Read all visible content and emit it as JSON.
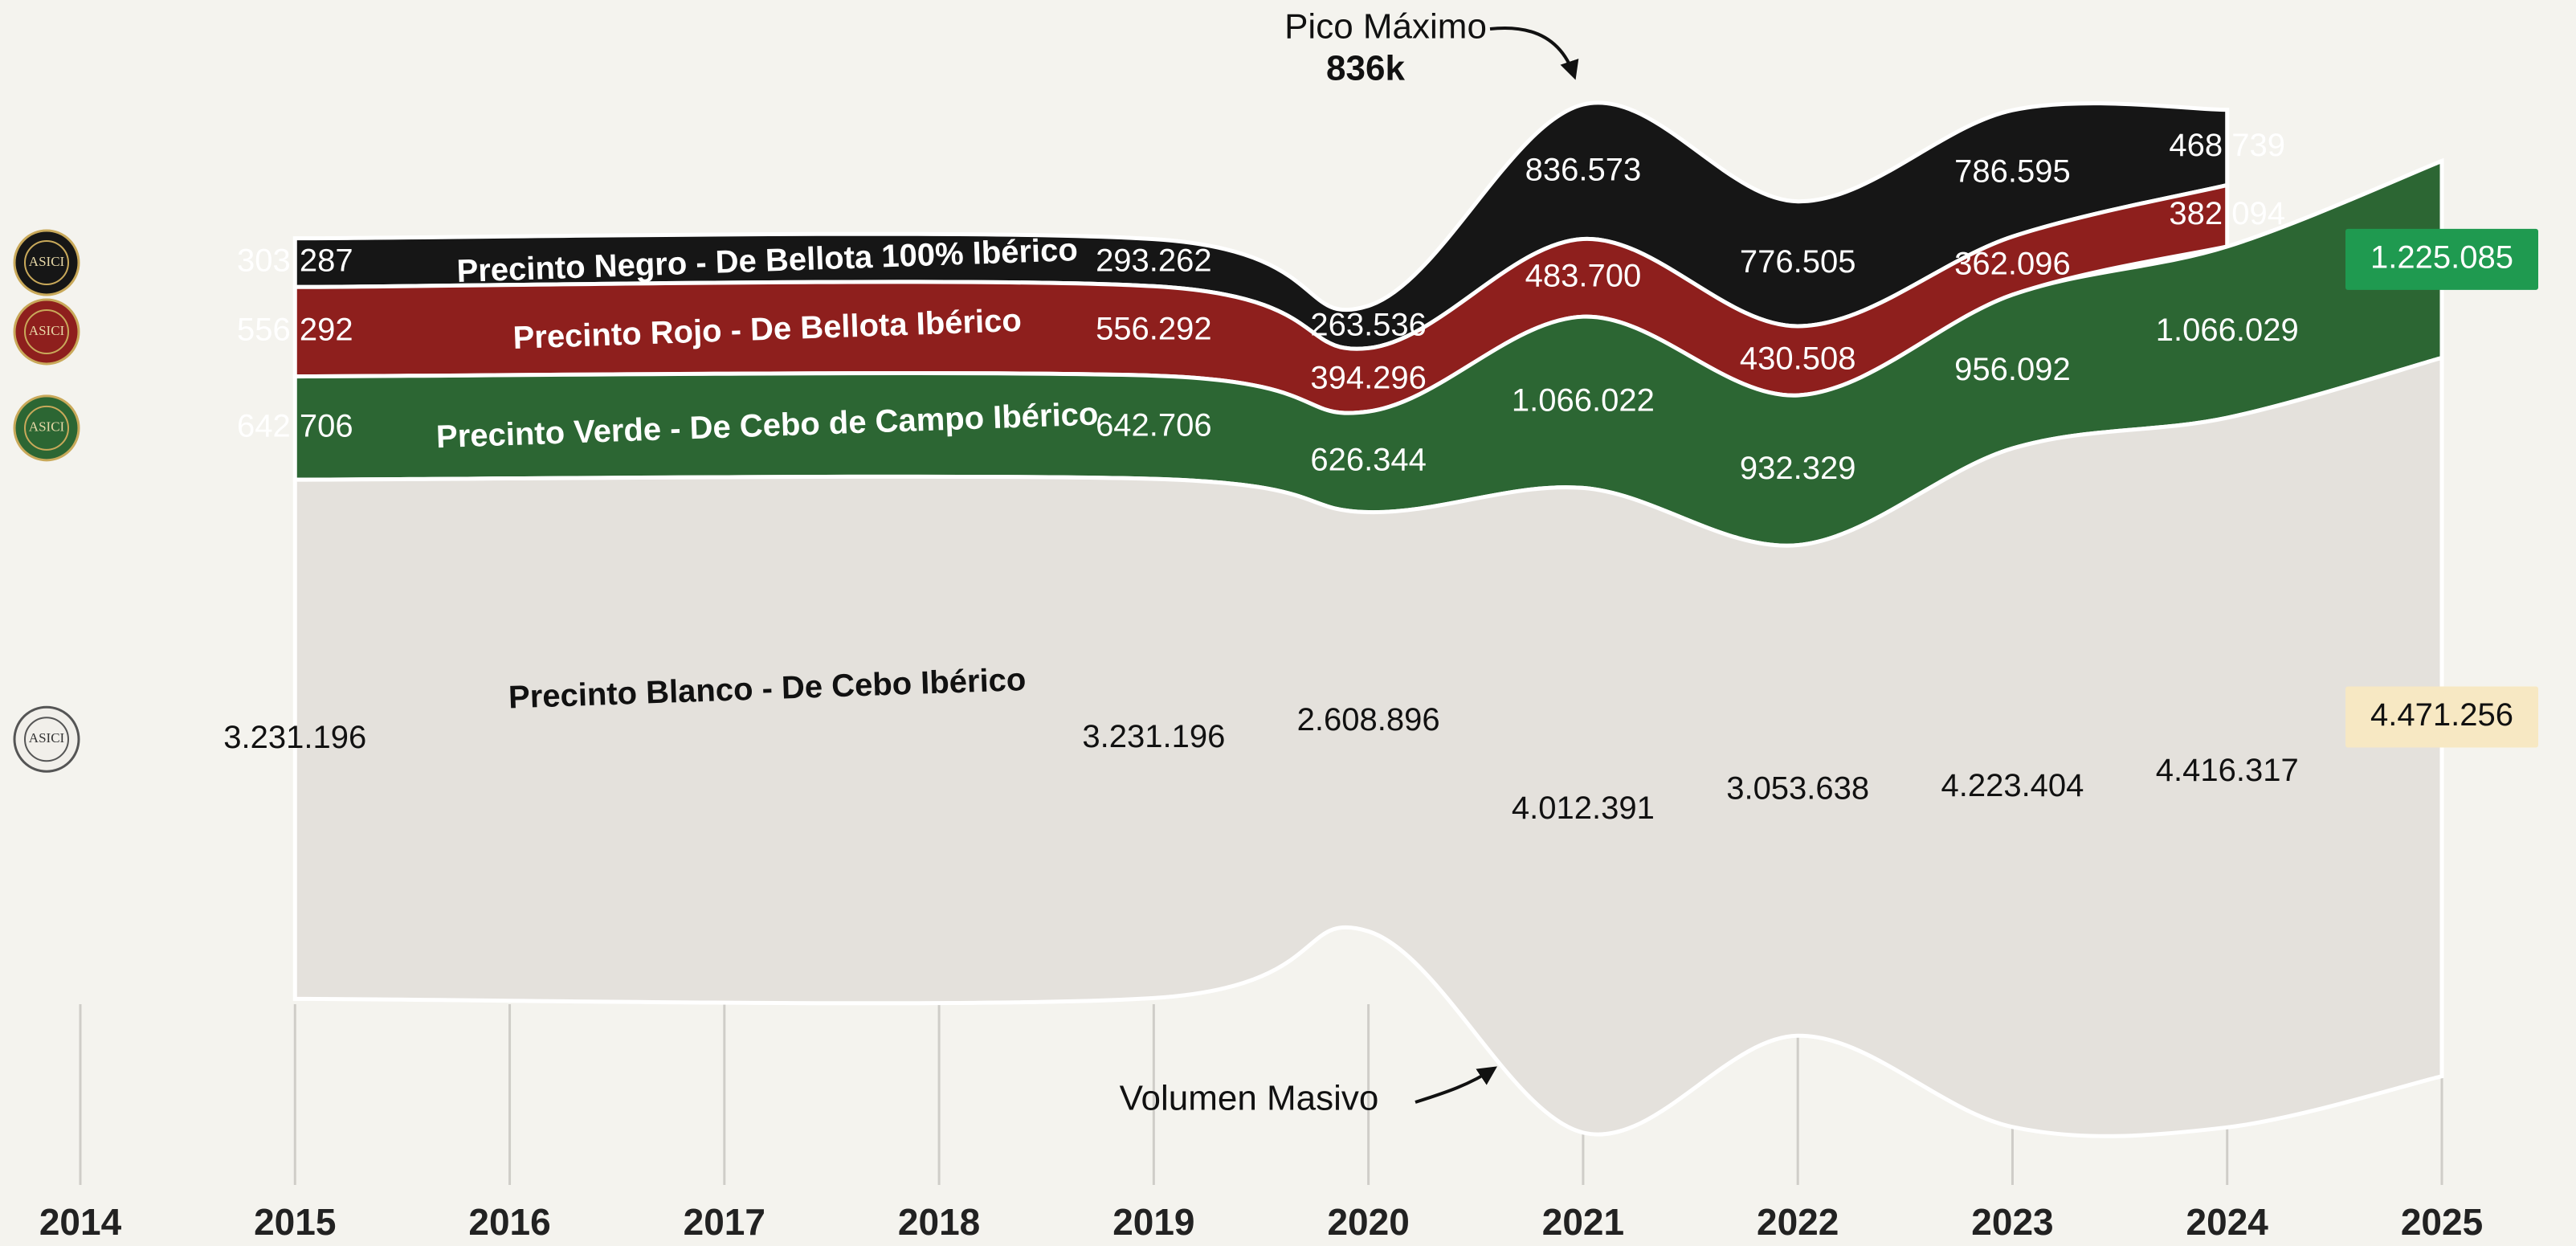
{
  "chart_data": {
    "type": "streamgraph",
    "x": [
      2015,
      2019,
      2020,
      2021,
      2022,
      2023,
      2024,
      2025
    ],
    "xlim": [
      2014,
      2025
    ],
    "xticks": [
      2014,
      2015,
      2016,
      2017,
      2018,
      2019,
      2020,
      2021,
      2022,
      2023,
      2024,
      2025
    ],
    "logo": "ASICI",
    "annotations": [
      {
        "text": "Pico Máximo",
        "value_label": "836k"
      },
      {
        "text": "Volumen Masivo"
      }
    ],
    "series": [
      {
        "name": "Precinto Negro - De Bellota 100% Ibérico",
        "color": "#161616",
        "values": [
          303287,
          293262,
          263536,
          836573,
          776505,
          786595,
          468739,
          null
        ],
        "value_labels": [
          "303.287",
          "293.262",
          "263.536",
          "836.573",
          "776.505",
          "786.595",
          "468.739",
          null
        ]
      },
      {
        "name": "Precinto Rojo - De Bellota Ibérico",
        "color": "#8e1f1d",
        "values": [
          556292,
          556292,
          394296,
          483700,
          430508,
          362096,
          382094,
          null
        ],
        "value_labels": [
          "556.292",
          "556.292",
          "394.296",
          "483.700",
          "430.508",
          "362.096",
          "382.094",
          null
        ]
      },
      {
        "name": "Precinto Verde - De Cebo de Campo Ibérico",
        "color": "#2c6633",
        "values": [
          642706,
          642706,
          626344,
          1066022,
          932329,
          956092,
          1066029,
          1225085
        ],
        "value_labels": [
          "642.706",
          "642.706",
          "626.344",
          "1.066.022",
          "932.329",
          "956.092",
          "1.066.029",
          "1.225.085"
        ]
      },
      {
        "name": "Precinto Blanco - De Cebo Ibérico",
        "color": "#e4e1dc",
        "values": [
          3231196,
          3231196,
          2608896,
          4012391,
          3053638,
          4223404,
          4416317,
          4471256
        ],
        "value_labels": [
          "3.231.196",
          "3.231.196",
          "2.608.896",
          "4.012.391",
          "3.053.638",
          "4.223.404",
          "4.416.317",
          "4.471.256"
        ]
      }
    ]
  }
}
